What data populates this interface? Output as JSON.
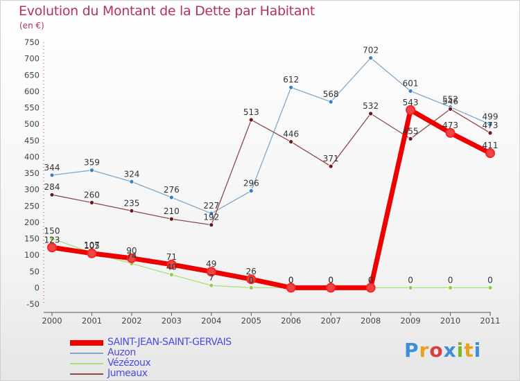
{
  "title": "Evolution du Montant de la Dette par Habitant",
  "subtitle": "(en €)",
  "logo": {
    "text": "Proxiti",
    "colors": [
      "#3f8fd8",
      "#e8a020",
      "#d84040",
      "#3f8fd8",
      "#7ab82a",
      "#e8a020",
      "#3f8fd8"
    ]
  },
  "chart_data": {
    "type": "line",
    "x": [
      "2000",
      "2001",
      "2002",
      "2003",
      "2004",
      "2005",
      "2006",
      "2007",
      "2008",
      "2009",
      "2010",
      "2011"
    ],
    "ylim": [
      -50,
      750
    ],
    "yticks": [
      "-50",
      "0",
      "50",
      "100",
      "150",
      "200",
      "250",
      "300",
      "350",
      "400",
      "450",
      "500",
      "550",
      "600",
      "650",
      "700",
      "750"
    ],
    "grid": false,
    "legend_position": "bottom-left",
    "series": [
      {
        "name": "SAINT-JEAN-SAINT-GERVAIS",
        "color": "#ee0000",
        "marker": "#e84848",
        "width": 7,
        "values": [
          123,
          105,
          90,
          71,
          49,
          26,
          0,
          0,
          0,
          543,
          473,
          411
        ],
        "labels": [
          "123",
          "105",
          "90",
          "71",
          "49",
          "26",
          "0",
          "0",
          "0",
          "543",
          "473",
          "411"
        ]
      },
      {
        "name": "Auzon",
        "color": "#7fa8cc",
        "marker": "#3a7fc4",
        "width": 1.3,
        "values": [
          344,
          359,
          324,
          276,
          227,
          296,
          612,
          568,
          702,
          601,
          552,
          499
        ],
        "labels": [
          "344",
          "359",
          "324",
          "276",
          "227",
          "296",
          "612",
          "568",
          "702",
          "601",
          "552",
          "499"
        ]
      },
      {
        "name": "Vézézoux",
        "color": "#a8e07a",
        "marker": "#8cd048",
        "width": 1.3,
        "values": [
          150,
          107,
          74,
          40,
          7,
          0,
          0,
          0,
          0,
          0,
          0,
          0
        ],
        "labels": [
          "150",
          "107",
          "74",
          "40",
          "7",
          "0",
          "0",
          "0",
          "0",
          "0",
          "0",
          "0"
        ]
      },
      {
        "name": "Jumeaux",
        "color": "#8a4a4a",
        "marker": "#6a1a1a",
        "width": 1.3,
        "values": [
          284,
          260,
          235,
          210,
          192,
          513,
          446,
          371,
          532,
          455,
          546,
          473
        ],
        "labels": [
          "284",
          "260",
          "235",
          "210",
          "192",
          "513",
          "446",
          "371",
          "532",
          "455",
          "546",
          "473"
        ]
      }
    ]
  }
}
